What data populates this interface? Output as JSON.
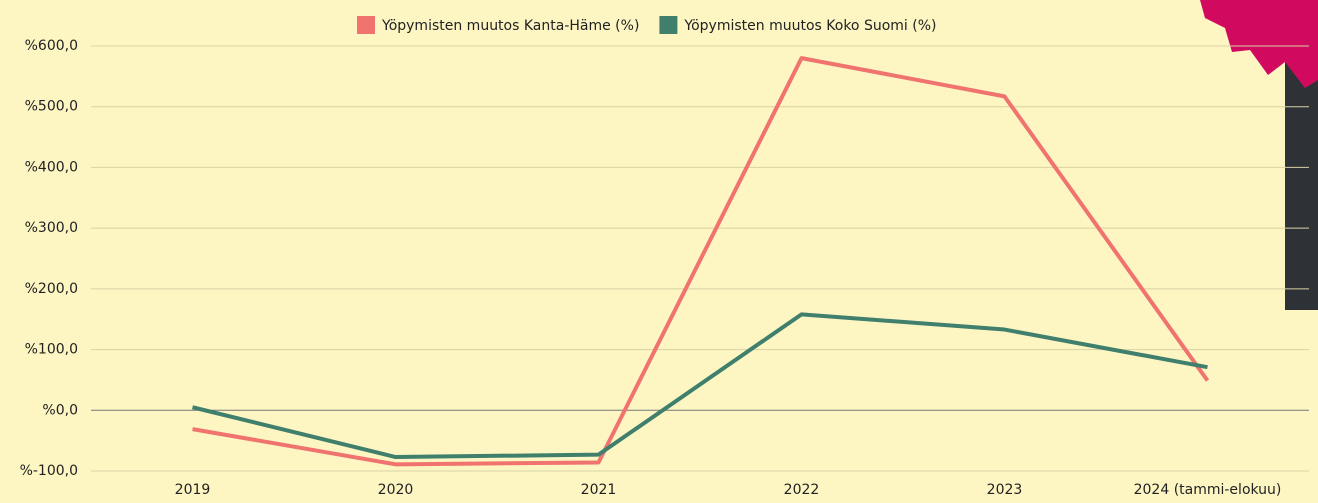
{
  "chart_data": {
    "type": "line",
    "categories": [
      "2019",
      "2020",
      "2021",
      "2022",
      "2023",
      "2024 (tammi-elokuu)"
    ],
    "series": [
      {
        "name": "Yöpymisten muutos Kanta-Häme (%)",
        "color": "#f0736f",
        "values": [
          -31,
          -89,
          -86,
          580,
          517,
          49
        ]
      },
      {
        "name": "Yöpymisten muutos Koko Suomi (%)",
        "color": "#3f7f6c",
        "values": [
          5,
          -77,
          -73,
          158,
          133,
          71
        ]
      }
    ],
    "ylim": [
      -100,
      600
    ],
    "yticks": [
      {
        "value": -100,
        "label": "%-100,0"
      },
      {
        "value": 0,
        "label": "%0,0"
      },
      {
        "value": 100,
        "label": "%100,0"
      },
      {
        "value": 200,
        "label": "%200,0"
      },
      {
        "value": 300,
        "label": "%300,0"
      },
      {
        "value": 400,
        "label": "%400,0"
      },
      {
        "value": 500,
        "label": "%500,0"
      },
      {
        "value": 600,
        "label": "%600,0"
      }
    ],
    "grid": true,
    "legend": "top"
  }
}
